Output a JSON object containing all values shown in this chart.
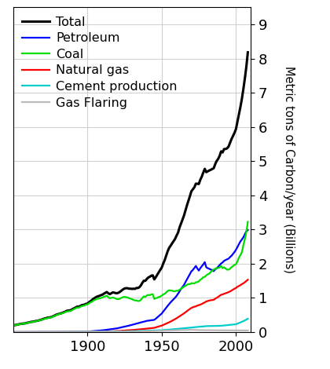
{
  "ylabel": "Metric tons of Carbon/year (Billions)",
  "xlim": [
    1850,
    2010
  ],
  "ylim": [
    0,
    9.5
  ],
  "yticks": [
    0,
    1,
    2,
    3,
    4,
    5,
    6,
    7,
    8,
    9
  ],
  "xticks": [
    1900,
    1950,
    2000
  ],
  "background_color": "#ffffff",
  "grid_color": "#cccccc",
  "legend_entries": [
    "Total",
    "Petroleum",
    "Coal",
    "Natural gas",
    "Cement production",
    "Gas Flaring"
  ],
  "line_colors": [
    "#000000",
    "#0000ff",
    "#00dd00",
    "#ff0000",
    "#00cccc",
    "#bbbbbb"
  ],
  "line_widths": [
    2.2,
    1.6,
    1.6,
    1.6,
    1.6,
    1.6
  ],
  "coal_data": [
    [
      1850,
      0.198
    ],
    [
      1855,
      0.23
    ],
    [
      1860,
      0.27
    ],
    [
      1865,
      0.318
    ],
    [
      1870,
      0.375
    ],
    [
      1875,
      0.43
    ],
    [
      1880,
      0.51
    ],
    [
      1885,
      0.57
    ],
    [
      1890,
      0.66
    ],
    [
      1895,
      0.73
    ],
    [
      1900,
      0.82
    ],
    [
      1905,
      0.94
    ],
    [
      1910,
      1.02
    ],
    [
      1913,
      1.1
    ],
    [
      1915,
      1.01
    ],
    [
      1920,
      0.95
    ],
    [
      1925,
      1.02
    ],
    [
      1930,
      0.95
    ],
    [
      1935,
      0.9
    ],
    [
      1938,
      1.05
    ],
    [
      1940,
      1.07
    ],
    [
      1944,
      1.08
    ],
    [
      1945,
      0.96
    ],
    [
      1950,
      1.05
    ],
    [
      1955,
      1.19
    ],
    [
      1960,
      1.23
    ],
    [
      1965,
      1.32
    ],
    [
      1970,
      1.43
    ],
    [
      1975,
      1.45
    ],
    [
      1980,
      1.68
    ],
    [
      1985,
      1.83
    ],
    [
      1990,
      1.95
    ],
    [
      1995,
      1.82
    ],
    [
      2000,
      1.99
    ],
    [
      2004,
      2.3
    ],
    [
      2007,
      2.9
    ],
    [
      2008,
      3.2
    ]
  ],
  "petroleum_data": [
    [
      1850,
      0.0
    ],
    [
      1870,
      0.001
    ],
    [
      1880,
      0.003
    ],
    [
      1890,
      0.007
    ],
    [
      1900,
      0.014
    ],
    [
      1910,
      0.05
    ],
    [
      1920,
      0.11
    ],
    [
      1930,
      0.21
    ],
    [
      1940,
      0.33
    ],
    [
      1945,
      0.36
    ],
    [
      1950,
      0.55
    ],
    [
      1955,
      0.82
    ],
    [
      1960,
      1.05
    ],
    [
      1965,
      1.38
    ],
    [
      1970,
      1.8
    ],
    [
      1973,
      1.97
    ],
    [
      1975,
      1.82
    ],
    [
      1979,
      2.08
    ],
    [
      1980,
      1.93
    ],
    [
      1985,
      1.78
    ],
    [
      1990,
      2.03
    ],
    [
      1995,
      2.15
    ],
    [
      2000,
      2.38
    ],
    [
      2004,
      2.7
    ],
    [
      2007,
      2.96
    ],
    [
      2008,
      3.0
    ]
  ],
  "natgas_data": [
    [
      1850,
      0.0
    ],
    [
      1900,
      0.003
    ],
    [
      1910,
      0.012
    ],
    [
      1920,
      0.03
    ],
    [
      1930,
      0.06
    ],
    [
      1940,
      0.1
    ],
    [
      1945,
      0.125
    ],
    [
      1950,
      0.19
    ],
    [
      1955,
      0.285
    ],
    [
      1960,
      0.405
    ],
    [
      1965,
      0.55
    ],
    [
      1970,
      0.71
    ],
    [
      1975,
      0.78
    ],
    [
      1980,
      0.89
    ],
    [
      1985,
      0.94
    ],
    [
      1990,
      1.09
    ],
    [
      1995,
      1.17
    ],
    [
      2000,
      1.29
    ],
    [
      2005,
      1.43
    ],
    [
      2008,
      1.53
    ]
  ],
  "cement_data": [
    [
      1850,
      0.0
    ],
    [
      1900,
      0.005
    ],
    [
      1920,
      0.015
    ],
    [
      1940,
      0.04
    ],
    [
      1950,
      0.055
    ],
    [
      1960,
      0.09
    ],
    [
      1970,
      0.135
    ],
    [
      1980,
      0.175
    ],
    [
      1990,
      0.185
    ],
    [
      2000,
      0.23
    ],
    [
      2005,
      0.32
    ],
    [
      2008,
      0.39
    ]
  ],
  "flaring_data": [
    [
      1850,
      0.0
    ],
    [
      1930,
      0.012
    ],
    [
      1950,
      0.04
    ],
    [
      1960,
      0.055
    ],
    [
      1970,
      0.068
    ],
    [
      1975,
      0.057
    ],
    [
      1980,
      0.056
    ],
    [
      1990,
      0.055
    ],
    [
      2000,
      0.048
    ],
    [
      2008,
      0.048
    ]
  ]
}
